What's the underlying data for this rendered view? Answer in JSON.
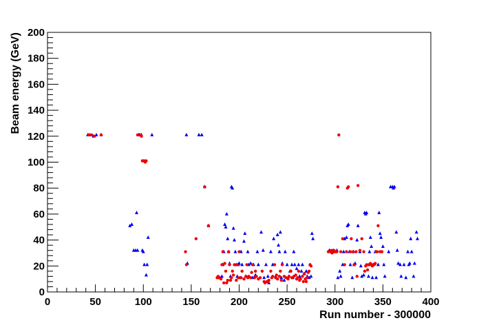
{
  "chart_data": {
    "type": "scatter",
    "title": "",
    "xlabel": "Run number - 300000",
    "ylabel": "Beam energy (GeV)",
    "xlim": [
      0,
      400
    ],
    "ylim": [
      0,
      200
    ],
    "x_ticks": [
      0,
      50,
      100,
      150,
      200,
      250,
      300,
      350,
      400
    ],
    "y_ticks": [
      0,
      20,
      40,
      60,
      80,
      100,
      120,
      140,
      160,
      180,
      200
    ],
    "grid": false,
    "legend": "none",
    "series": [
      {
        "color": "#0000ee",
        "marker": "triangle",
        "points": [
          [
            42,
            121
          ],
          [
            44,
            121
          ],
          [
            48,
            120
          ],
          [
            51,
            121
          ],
          [
            56,
            121
          ],
          [
            86,
            51
          ],
          [
            88,
            52
          ],
          [
            90,
            32
          ],
          [
            92,
            32
          ],
          [
            93,
            61
          ],
          [
            94,
            32
          ],
          [
            95,
            121
          ],
          [
            96,
            121
          ],
          [
            98,
            121
          ],
          [
            99,
            32
          ],
          [
            100,
            31
          ],
          [
            101,
            21
          ],
          [
            103,
            13
          ],
          [
            104,
            21
          ],
          [
            105,
            42
          ],
          [
            109,
            121
          ],
          [
            145,
            121
          ],
          [
            146,
            22
          ],
          [
            158,
            121
          ],
          [
            161,
            121
          ],
          [
            164,
            81
          ],
          [
            168,
            51
          ],
          [
            178,
            11
          ],
          [
            180,
            11
          ],
          [
            182,
            12
          ],
          [
            183,
            21
          ],
          [
            184,
            31
          ],
          [
            185,
            52
          ],
          [
            186,
            50
          ],
          [
            187,
            60
          ],
          [
            188,
            41
          ],
          [
            189,
            31
          ],
          [
            190,
            22
          ],
          [
            191,
            12
          ],
          [
            192,
            81
          ],
          [
            193,
            80
          ],
          [
            194,
            49
          ],
          [
            195,
            40
          ],
          [
            196,
            31
          ],
          [
            197,
            21
          ],
          [
            198,
            12
          ],
          [
            199,
            21
          ],
          [
            200,
            22
          ],
          [
            201,
            11
          ],
          [
            202,
            31
          ],
          [
            203,
            21
          ],
          [
            205,
            39
          ],
          [
            206,
            45
          ],
          [
            207,
            12
          ],
          [
            209,
            31
          ],
          [
            210,
            21
          ],
          [
            212,
            22
          ],
          [
            214,
            11
          ],
          [
            215,
            21
          ],
          [
            217,
            13
          ],
          [
            219,
            31
          ],
          [
            220,
            21
          ],
          [
            223,
            46
          ],
          [
            225,
            32
          ],
          [
            226,
            11
          ],
          [
            228,
            21
          ],
          [
            230,
            12
          ],
          [
            231,
            7
          ],
          [
            233,
            31
          ],
          [
            235,
            21
          ],
          [
            236,
            41
          ],
          [
            238,
            12
          ],
          [
            240,
            44
          ],
          [
            241,
            36
          ],
          [
            242,
            31
          ],
          [
            243,
            46
          ],
          [
            244,
            11
          ],
          [
            245,
            22
          ],
          [
            247,
            9
          ],
          [
            248,
            31
          ],
          [
            250,
            21
          ],
          [
            252,
            12
          ],
          [
            253,
            16
          ],
          [
            255,
            21
          ],
          [
            256,
            11
          ],
          [
            257,
            31
          ],
          [
            258,
            21
          ],
          [
            260,
            18
          ],
          [
            262,
            21
          ],
          [
            263,
            12
          ],
          [
            265,
            16
          ],
          [
            266,
            21
          ],
          [
            268,
            14
          ],
          [
            270,
            16
          ],
          [
            271,
            12
          ],
          [
            273,
            11
          ],
          [
            274,
            21
          ],
          [
            275,
            12
          ],
          [
            276,
            45
          ],
          [
            277,
            41
          ],
          [
            294,
            32
          ],
          [
            296,
            31
          ],
          [
            298,
            32
          ],
          [
            300,
            31
          ],
          [
            302,
            32
          ],
          [
            303,
            11
          ],
          [
            305,
            16
          ],
          [
            306,
            12
          ],
          [
            308,
            21
          ],
          [
            309,
            31
          ],
          [
            310,
            41
          ],
          [
            312,
            42
          ],
          [
            313,
            51
          ],
          [
            314,
            52
          ],
          [
            315,
            31
          ],
          [
            316,
            21
          ],
          [
            318,
            11
          ],
          [
            319,
            31
          ],
          [
            320,
            21
          ],
          [
            321,
            22
          ],
          [
            323,
            40
          ],
          [
            324,
            51
          ],
          [
            326,
            31
          ],
          [
            327,
            20
          ],
          [
            328,
            12
          ],
          [
            330,
            13
          ],
          [
            331,
            61
          ],
          [
            332,
            60
          ],
          [
            333,
            61
          ],
          [
            335,
            12
          ],
          [
            336,
            31
          ],
          [
            337,
            42
          ],
          [
            338,
            35
          ],
          [
            339,
            11
          ],
          [
            340,
            21
          ],
          [
            342,
            31
          ],
          [
            343,
            11
          ],
          [
            345,
            21
          ],
          [
            346,
            61
          ],
          [
            347,
            45
          ],
          [
            348,
            42
          ],
          [
            350,
            35
          ],
          [
            351,
            21
          ],
          [
            352,
            12
          ],
          [
            356,
            31
          ],
          [
            358,
            81
          ],
          [
            360,
            81
          ],
          [
            361,
            80
          ],
          [
            362,
            81
          ],
          [
            364,
            46
          ],
          [
            365,
            32
          ],
          [
            366,
            22
          ],
          [
            368,
            21
          ],
          [
            369,
            12
          ],
          [
            372,
            21
          ],
          [
            374,
            11
          ],
          [
            376,
            31
          ],
          [
            377,
            21
          ],
          [
            378,
            22
          ],
          [
            379,
            41
          ],
          [
            380,
            31
          ],
          [
            382,
            12
          ],
          [
            383,
            22
          ],
          [
            385,
            46
          ],
          [
            386,
            41
          ]
        ]
      },
      {
        "color": "#ee0000",
        "marker": "circle",
        "points": [
          [
            43,
            121
          ],
          [
            46,
            121
          ],
          [
            49,
            120
          ],
          [
            56,
            121
          ],
          [
            94,
            121
          ],
          [
            97,
            121
          ],
          [
            98,
            120
          ],
          [
            99,
            101
          ],
          [
            100,
            101
          ],
          [
            101,
            101
          ],
          [
            102,
            100
          ],
          [
            103,
            101
          ],
          [
            144,
            31
          ],
          [
            145,
            21
          ],
          [
            155,
            41
          ],
          [
            164,
            81
          ],
          [
            168,
            51
          ],
          [
            177,
            11
          ],
          [
            178,
            12
          ],
          [
            179,
            11
          ],
          [
            181,
            10
          ],
          [
            182,
            21
          ],
          [
            183,
            31
          ],
          [
            184,
            7
          ],
          [
            185,
            22
          ],
          [
            186,
            16
          ],
          [
            187,
            7
          ],
          [
            188,
            9
          ],
          [
            189,
            31
          ],
          [
            190,
            21
          ],
          [
            191,
            9
          ],
          [
            192,
            11
          ],
          [
            193,
            16
          ],
          [
            194,
            13
          ],
          [
            195,
            21
          ],
          [
            197,
            9
          ],
          [
            198,
            21
          ],
          [
            199,
            11
          ],
          [
            200,
            31
          ],
          [
            202,
            11
          ],
          [
            203,
            16
          ],
          [
            205,
            10
          ],
          [
            207,
            12
          ],
          [
            208,
            21
          ],
          [
            209,
            11
          ],
          [
            210,
            12
          ],
          [
            212,
            11
          ],
          [
            213,
            15
          ],
          [
            214,
            21
          ],
          [
            216,
            11
          ],
          [
            217,
            16
          ],
          [
            218,
            12
          ],
          [
            220,
            10
          ],
          [
            222,
            11
          ],
          [
            224,
            16
          ],
          [
            226,
            8
          ],
          [
            227,
            7
          ],
          [
            229,
            8
          ],
          [
            230,
            8
          ],
          [
            231,
            9
          ],
          [
            233,
            16
          ],
          [
            234,
            11
          ],
          [
            235,
            12
          ],
          [
            237,
            21
          ],
          [
            238,
            11
          ],
          [
            239,
            13
          ],
          [
            240,
            10
          ],
          [
            242,
            12
          ],
          [
            243,
            16
          ],
          [
            244,
            9
          ],
          [
            245,
            21
          ],
          [
            247,
            12
          ],
          [
            249,
            11
          ],
          [
            251,
            10
          ],
          [
            252,
            12
          ],
          [
            254,
            16
          ],
          [
            255,
            11
          ],
          [
            257,
            12
          ],
          [
            259,
            13
          ],
          [
            260,
            10
          ],
          [
            261,
            11
          ],
          [
            262,
            16
          ],
          [
            263,
            9
          ],
          [
            264,
            10
          ],
          [
            266,
            12
          ],
          [
            267,
            8
          ],
          [
            268,
            14
          ],
          [
            269,
            10
          ],
          [
            270,
            8
          ],
          [
            271,
            11
          ],
          [
            272,
            15
          ],
          [
            273,
            16
          ],
          [
            274,
            21
          ],
          [
            275,
            20
          ],
          [
            293,
            31
          ],
          [
            295,
            31
          ],
          [
            296,
            32
          ],
          [
            297,
            30
          ],
          [
            298,
            31
          ],
          [
            299,
            32
          ],
          [
            300,
            31
          ],
          [
            302,
            31
          ],
          [
            303,
            81
          ],
          [
            304,
            121
          ],
          [
            306,
            31
          ],
          [
            308,
            41
          ],
          [
            310,
            21
          ],
          [
            312,
            31
          ],
          [
            313,
            80
          ],
          [
            314,
            81
          ],
          [
            316,
            31
          ],
          [
            317,
            41
          ],
          [
            319,
            31
          ],
          [
            320,
            21
          ],
          [
            322,
            31
          ],
          [
            323,
            12
          ],
          [
            324,
            82
          ],
          [
            326,
            32
          ],
          [
            328,
            41
          ],
          [
            330,
            31
          ],
          [
            331,
            16
          ],
          [
            332,
            20
          ],
          [
            333,
            21
          ],
          [
            334,
            17
          ],
          [
            335,
            21
          ],
          [
            336,
            21
          ],
          [
            337,
            22
          ],
          [
            338,
            21
          ],
          [
            339,
            20
          ],
          [
            340,
            21
          ],
          [
            341,
            21
          ],
          [
            342,
            22
          ],
          [
            343,
            31
          ],
          [
            344,
            31
          ],
          [
            345,
            51
          ],
          [
            347,
            31
          ],
          [
            349,
            31
          ]
        ]
      }
    ]
  }
}
